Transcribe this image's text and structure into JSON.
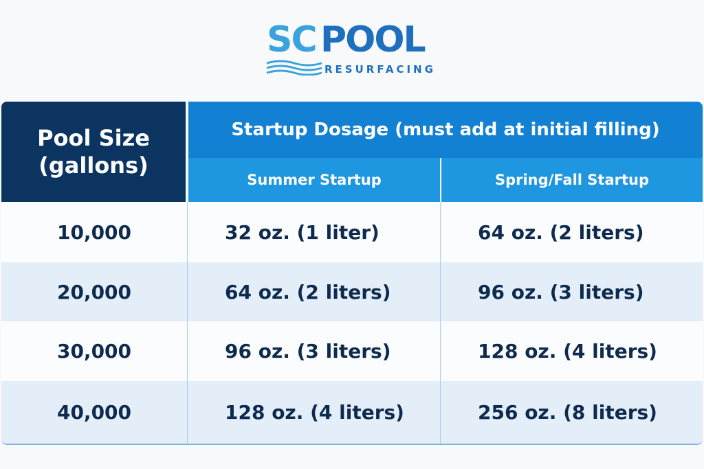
{
  "logo": {
    "brand_sc": "SC",
    "brand_pool": "POOL",
    "tagline": "RESURFACING"
  },
  "table": {
    "col_pool_size": "Pool Size (gallons)",
    "group_header": "Startup Dosage (must add at initial filling)",
    "col_summer": "Summer Startup",
    "col_spring_fall": "Spring/Fall Startup",
    "rows": [
      {
        "size": "10,000",
        "summer": "32 oz. (1 liter)",
        "spring_fall": "64 oz. (2 liters)"
      },
      {
        "size": "20,000",
        "summer": "64 oz. (2 liters)",
        "spring_fall": "96 oz. (3 liters)"
      },
      {
        "size": "30,000",
        "summer": "96 oz. (3 liters)",
        "spring_fall": "128 oz. (4 liters)"
      },
      {
        "size": "40,000",
        "summer": "128 oz. (4 liters)",
        "spring_fall": "256 oz. (8 liters)"
      }
    ]
  },
  "colors": {
    "navy": "#0b3461",
    "header": "#1280d3",
    "subheader": "#1e97e0",
    "alt_row": "#e3eef9"
  }
}
